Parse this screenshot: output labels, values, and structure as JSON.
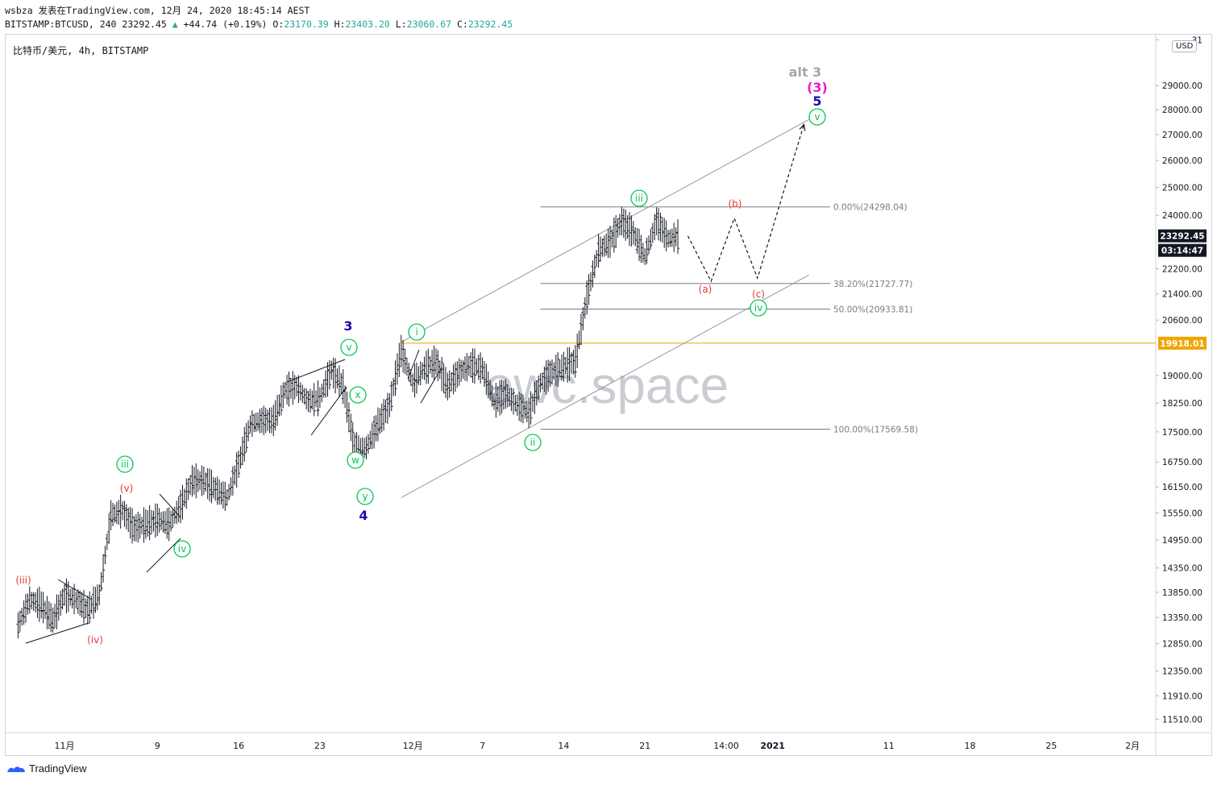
{
  "header": {
    "author_line": "wsbza 发表在TradingView.com, 12月 24, 2020 18:45:14 AEST",
    "symbol_prefix": "BITSTAMP:BTCUSD, 240",
    "last": "23292.45",
    "change_arrow": "▲",
    "change": "+44.74 (+0.19%)",
    "o_label": "O:",
    "o": "23170.39",
    "h_label": "H:",
    "h": "23403.20",
    "l_label": "L:",
    "l": "23060.67",
    "c_label": "C:",
    "c": "23292.45"
  },
  "chart_title": "比特币/美元, 4h, BITSTAMP",
  "currency_button": "USD",
  "watermark": "ewc.space",
  "footer_brand": "TradingView",
  "colors": {
    "bar": "#131722",
    "grid_line": "#787b86",
    "channel": "#9598a1",
    "hline": "#f0a500",
    "green": "#00c853",
    "red": "#e53935",
    "blue": "#1a0dab",
    "magenta": "#e91ec8",
    "gray_label": "#a3a6af",
    "axis_dark": "#131722",
    "axis_orange": "#f0a500"
  },
  "chart_data": {
    "type": "candlestick-ohlc",
    "title": "比特币/美元, 4h, BITSTAMP",
    "y_scale": "log",
    "ylim": [
      11300,
      31200
    ],
    "y_ticks": [
      "11510.00",
      "11910.00",
      "12350.00",
      "12850.00",
      "13350.00",
      "13850.00",
      "14350.00",
      "14950.00",
      "15550.00",
      "16150.00",
      "16750.00",
      "17500.00",
      "18250.00",
      "19000.00",
      "20600.00",
      "21400.00",
      "22200.00",
      "24000.00",
      "25000.00",
      "26000.00",
      "27000.00",
      "28000.00",
      "29000.00",
      "31"
    ],
    "x_ticks": [
      "11月",
      "9",
      "16",
      "23",
      "12月",
      "7",
      "14",
      "21",
      "14:00",
      "2021",
      "11",
      "18",
      "25",
      "2月"
    ],
    "price_labels": [
      {
        "text": "23292.45",
        "price": 23292.45,
        "style": "dark"
      },
      {
        "text": "03:14:47",
        "price": 22900,
        "style": "dark"
      },
      {
        "text": "19918.01",
        "price": 19918.01,
        "style": "orange"
      }
    ],
    "fib_levels": [
      {
        "label": "0.00%(24298.04)",
        "price": 24298.04
      },
      {
        "label": "38.20%(21727.77)",
        "price": 21727.77
      },
      {
        "label": "50.00%(20933.81)",
        "price": 20933.81
      },
      {
        "label": "100.00%(17569.58)",
        "price": 17569.58
      }
    ],
    "horizontal_line": {
      "price": 19918.01
    },
    "price_path": [
      {
        "t": "10-28",
        "p": 13200
      },
      {
        "t": "10-29",
        "p": 13700
      },
      {
        "t": "10-30",
        "p": 13600
      },
      {
        "t": "10-31",
        "p": 13300
      },
      {
        "t": "11-01",
        "p": 13800
      },
      {
        "t": "11-02",
        "p": 13700
      },
      {
        "t": "11-03",
        "p": 13500
      },
      {
        "t": "11-04",
        "p": 13800
      },
      {
        "t": "11-05",
        "p": 15500
      },
      {
        "t": "11-06",
        "p": 15600
      },
      {
        "t": "11-07",
        "p": 15200
      },
      {
        "t": "11-08",
        "p": 15300
      },
      {
        "t": "11-09",
        "p": 15400
      },
      {
        "t": "11-10",
        "p": 15300
      },
      {
        "t": "11-11",
        "p": 15700
      },
      {
        "t": "11-12",
        "p": 16300
      },
      {
        "t": "11-13",
        "p": 16300
      },
      {
        "t": "11-14",
        "p": 16100
      },
      {
        "t": "11-15",
        "p": 15900
      },
      {
        "t": "11-16",
        "p": 16700
      },
      {
        "t": "11-17",
        "p": 17700
      },
      {
        "t": "11-18",
        "p": 17800
      },
      {
        "t": "11-19",
        "p": 17800
      },
      {
        "t": "11-20",
        "p": 18600
      },
      {
        "t": "11-21",
        "p": 18700
      },
      {
        "t": "11-22",
        "p": 18300
      },
      {
        "t": "11-23",
        "p": 18400
      },
      {
        "t": "11-24",
        "p": 19150
      },
      {
        "t": "11-25",
        "p": 18700
      },
      {
        "t": "11-26",
        "p": 17100
      },
      {
        "t": "11-27",
        "p": 17100
      },
      {
        "t": "11-28",
        "p": 17700
      },
      {
        "t": "11-29",
        "p": 18200
      },
      {
        "t": "11-30",
        "p": 19700
      },
      {
        "t": "12-01",
        "p": 18800
      },
      {
        "t": "12-02",
        "p": 19200
      },
      {
        "t": "12-03",
        "p": 19400
      },
      {
        "t": "12-04",
        "p": 18700
      },
      {
        "t": "12-05",
        "p": 19100
      },
      {
        "t": "12-06",
        "p": 19300
      },
      {
        "t": "12-07",
        "p": 19200
      },
      {
        "t": "12-08",
        "p": 18300
      },
      {
        "t": "12-09",
        "p": 18500
      },
      {
        "t": "12-10",
        "p": 18200
      },
      {
        "t": "12-11",
        "p": 18000
      },
      {
        "t": "12-12",
        "p": 18800
      },
      {
        "t": "12-13",
        "p": 19100
      },
      {
        "t": "12-14",
        "p": 19250
      },
      {
        "t": "12-15",
        "p": 19400
      },
      {
        "t": "12-16",
        "p": 21300
      },
      {
        "t": "12-17",
        "p": 22800
      },
      {
        "t": "12-18",
        "p": 23100
      },
      {
        "t": "12-19",
        "p": 23800
      },
      {
        "t": "12-20",
        "p": 23400
      },
      {
        "t": "12-21",
        "p": 22600
      },
      {
        "t": "12-22",
        "p": 23800
      },
      {
        "t": "12-23",
        "p": 23200
      },
      {
        "t": "12-24",
        "p": 23292
      }
    ],
    "projection": [
      {
        "t": "12-24",
        "p": 23290
      },
      {
        "t": "12-26",
        "p": 21800
      },
      {
        "t": "12-28",
        "p": 23900
      },
      {
        "t": "12-30",
        "p": 21900
      },
      {
        "t": "01-03",
        "p": 27400
      }
    ],
    "channel_lines": [
      {
        "from": {
          "t": "11-30",
          "p": 19950
        },
        "to": {
          "t": "01-01",
          "p": 27600
        }
      },
      {
        "from": {
          "t": "11-30",
          "p": 15900
        },
        "to": {
          "t": "01-01",
          "p": 22000
        }
      }
    ],
    "annotations": [
      {
        "text": "(iii)",
        "color": "red",
        "circle": false
      },
      {
        "text": "(iv)",
        "color": "red",
        "circle": false
      },
      {
        "text": "(v)",
        "color": "red",
        "circle": false
      },
      {
        "text": "iii",
        "color": "green",
        "circle": true
      },
      {
        "text": "iv",
        "color": "green",
        "circle": true
      },
      {
        "text": "3",
        "color": "blue",
        "circle": false
      },
      {
        "text": "v",
        "color": "green",
        "circle": true
      },
      {
        "text": "x",
        "color": "green",
        "circle": true
      },
      {
        "text": "w",
        "color": "green",
        "circle": true
      },
      {
        "text": "y",
        "color": "green",
        "circle": true
      },
      {
        "text": "4",
        "color": "blue",
        "circle": false
      },
      {
        "text": "i",
        "color": "green",
        "circle": true
      },
      {
        "text": "ii",
        "color": "green",
        "circle": true
      },
      {
        "text": "iii",
        "color": "green",
        "circle": true
      },
      {
        "text": "(a)",
        "color": "red",
        "circle": false
      },
      {
        "text": "(b)",
        "color": "red",
        "circle": false
      },
      {
        "text": "(c)",
        "color": "red",
        "circle": false
      },
      {
        "text": "iv",
        "color": "green",
        "circle": true
      },
      {
        "text": "v",
        "color": "green",
        "circle": true
      },
      {
        "text": "5",
        "color": "blue",
        "circle": false
      },
      {
        "text": "(3)",
        "color": "magenta",
        "circle": false
      },
      {
        "text": "alt 3",
        "color": "gray_label",
        "circle": false
      }
    ]
  }
}
